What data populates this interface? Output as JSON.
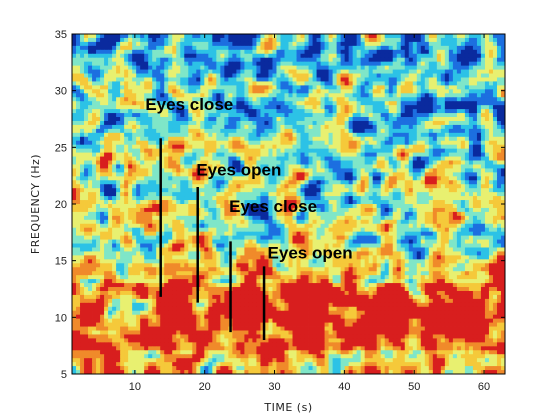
{
  "chart_data": {
    "type": "heatmap",
    "title": "",
    "xlabel": "TIME (s)",
    "ylabel": "FREQUENCY (Hz)",
    "xlim": [
      1,
      63
    ],
    "ylim": [
      5,
      35
    ],
    "x_ticks": [
      10,
      20,
      30,
      40,
      50,
      60
    ],
    "y_ticks": [
      5,
      10,
      15,
      20,
      25,
      30,
      35
    ],
    "colormap": [
      "#0a2a9e",
      "#1c6fe0",
      "#2cc2e6",
      "#7fe6c8",
      "#e8f070",
      "#f5c93a",
      "#f08a2a",
      "#d81e1e"
    ],
    "high_power_regions": [
      {
        "time_start": 13.5,
        "time_end": 18.5,
        "freq_start": 8.5,
        "freq_end": 12.5
      },
      {
        "time_start": 23.5,
        "time_end": 28.5,
        "freq_start": 8.5,
        "freq_end": 12.5
      },
      {
        "time_start": 32,
        "time_end": 38,
        "freq_start": 8.5,
        "freq_end": 12.5
      },
      {
        "time_start": 43,
        "time_end": 49,
        "freq_start": 8.5,
        "freq_end": 12.5
      },
      {
        "time_start": 52.5,
        "time_end": 59.5,
        "freq_start": 8.5,
        "freq_end": 12.5
      }
    ],
    "annotations": [
      {
        "text": "Eyes close",
        "time": 13.7,
        "freq_top": 25.8,
        "freq_bottom": 11.8,
        "label_time": 11.5,
        "label_freq": 28.3
      },
      {
        "text": "Eyes open",
        "time": 19.0,
        "freq_top": 21.5,
        "freq_bottom": 11.3,
        "label_time": 18.8,
        "label_freq": 22.5
      },
      {
        "text": "Eyes close",
        "time": 23.7,
        "freq_top": 16.7,
        "freq_bottom": 8.7,
        "label_time": 23.5,
        "label_freq": 19.3
      },
      {
        "text": "Eyes open",
        "time": 28.5,
        "freq_top": 14.5,
        "freq_bottom": 8.0,
        "label_time": 29.0,
        "label_freq": 15.2
      }
    ]
  }
}
